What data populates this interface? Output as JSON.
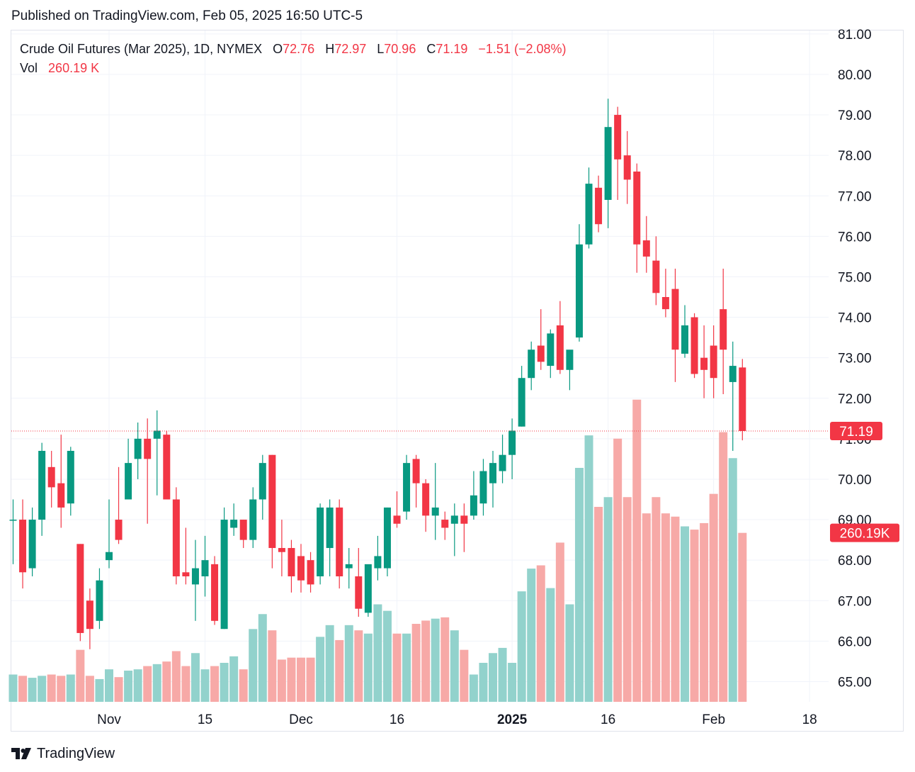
{
  "header": {
    "published": "Published on TradingView.com, Feb 05, 2025 16:50 UTC-5"
  },
  "legend": {
    "symbol": "Crude Oil Futures (Mar 2025), 1D, NYMEX",
    "o_label": "O",
    "o_value": "72.76",
    "h_label": "H",
    "h_value": "72.97",
    "l_label": "L",
    "l_value": "70.96",
    "c_label": "C",
    "c_value": "71.19",
    "change": "−1.51 (−2.08%)",
    "vol_label": "Vol",
    "vol_value": "260.19 K"
  },
  "footer": {
    "brand": "TradingView"
  },
  "chart_data": {
    "type": "candlestick",
    "colors": {
      "up": "#089981",
      "down": "#f23645",
      "up_volume": "#92d2cc",
      "down_volume": "#f7a9a7",
      "grid": "#f0f3fa"
    },
    "y_axis": {
      "ticks": [
        "65.00",
        "66.00",
        "67.00",
        "68.00",
        "69.00",
        "70.00",
        "71.00",
        "72.00",
        "73.00",
        "74.00",
        "75.00",
        "76.00",
        "77.00",
        "78.00",
        "79.00",
        "80.00",
        "81.00"
      ],
      "range": [
        64.45,
        81.05
      ]
    },
    "x_axis": {
      "ticks": [
        "Nov",
        "15",
        "Dec",
        "16",
        "2025",
        "16",
        "Feb",
        "18"
      ],
      "tick_index": [
        10,
        20,
        30,
        40,
        52,
        62,
        73,
        83
      ]
    },
    "last_price": "71.19",
    "last_volume": "260.19K",
    "volume_max": 300,
    "candles": [
      {
        "o": 69.0,
        "h": 69.5,
        "l": 67.9,
        "c": 69.0,
        "v": 42
      },
      {
        "o": 69.0,
        "h": 69.5,
        "l": 67.3,
        "c": 67.7,
        "v": 40
      },
      {
        "o": 67.8,
        "h": 69.3,
        "l": 67.6,
        "c": 69.0,
        "v": 37
      },
      {
        "o": 69.0,
        "h": 70.9,
        "l": 68.6,
        "c": 70.7,
        "v": 40
      },
      {
        "o": 70.3,
        "h": 70.7,
        "l": 69.3,
        "c": 69.8,
        "v": 42
      },
      {
        "o": 69.9,
        "h": 71.1,
        "l": 68.8,
        "c": 69.3,
        "v": 40
      },
      {
        "o": 69.4,
        "h": 70.8,
        "l": 69.1,
        "c": 70.7,
        "v": 42
      },
      {
        "o": 68.4,
        "h": 68.4,
        "l": 66.0,
        "c": 66.2,
        "v": 80
      },
      {
        "o": 67.0,
        "h": 67.3,
        "l": 65.8,
        "c": 66.3,
        "v": 40
      },
      {
        "o": 66.5,
        "h": 67.8,
        "l": 66.3,
        "c": 67.5,
        "v": 35
      },
      {
        "o": 68.0,
        "h": 69.5,
        "l": 67.8,
        "c": 68.2,
        "v": 50
      },
      {
        "o": 69.0,
        "h": 70.3,
        "l": 68.4,
        "c": 68.5,
        "v": 38
      },
      {
        "o": 69.5,
        "h": 71.0,
        "l": 69.5,
        "c": 70.4,
        "v": 48
      },
      {
        "o": 70.5,
        "h": 71.4,
        "l": 70.0,
        "c": 71.0,
        "v": 50
      },
      {
        "o": 71.0,
        "h": 71.5,
        "l": 68.9,
        "c": 70.5,
        "v": 55
      },
      {
        "o": 71.0,
        "h": 71.7,
        "l": 69.6,
        "c": 71.2,
        "v": 58
      },
      {
        "o": 71.1,
        "h": 71.2,
        "l": 69.6,
        "c": 69.5,
        "v": 62
      },
      {
        "o": 69.5,
        "h": 69.8,
        "l": 67.4,
        "c": 67.6,
        "v": 78
      },
      {
        "o": 67.7,
        "h": 68.8,
        "l": 67.4,
        "c": 67.6,
        "v": 55
      },
      {
        "o": 67.4,
        "h": 68.5,
        "l": 66.5,
        "c": 67.8,
        "v": 75
      },
      {
        "o": 67.6,
        "h": 68.6,
        "l": 67.1,
        "c": 68.0,
        "v": 50
      },
      {
        "o": 67.9,
        "h": 68.1,
        "l": 66.4,
        "c": 66.5,
        "v": 55
      },
      {
        "o": 66.3,
        "h": 69.3,
        "l": 66.3,
        "c": 69.0,
        "v": 60
      },
      {
        "o": 68.8,
        "h": 69.4,
        "l": 68.6,
        "c": 69.0,
        "v": 70
      },
      {
        "o": 69.0,
        "h": 69.0,
        "l": 68.3,
        "c": 68.5,
        "v": 50
      },
      {
        "o": 68.5,
        "h": 69.8,
        "l": 68.3,
        "c": 69.5,
        "v": 112
      },
      {
        "o": 69.5,
        "h": 70.6,
        "l": 69.0,
        "c": 70.4,
        "v": 135
      },
      {
        "o": 70.6,
        "h": 70.6,
        "l": 67.8,
        "c": 68.3,
        "v": 110
      },
      {
        "o": 68.3,
        "h": 69.0,
        "l": 67.6,
        "c": 68.2,
        "v": 65
      },
      {
        "o": 68.3,
        "h": 68.5,
        "l": 67.2,
        "c": 67.6,
        "v": 68
      },
      {
        "o": 68.1,
        "h": 68.4,
        "l": 67.2,
        "c": 67.5,
        "v": 68
      },
      {
        "o": 68.0,
        "h": 68.2,
        "l": 67.2,
        "c": 67.4,
        "v": 68
      },
      {
        "o": 67.6,
        "h": 69.4,
        "l": 67.4,
        "c": 69.3,
        "v": 100
      },
      {
        "o": 68.3,
        "h": 69.5,
        "l": 67.6,
        "c": 69.3,
        "v": 118
      },
      {
        "o": 69.3,
        "h": 69.5,
        "l": 67.3,
        "c": 67.6,
        "v": 95
      },
      {
        "o": 67.8,
        "h": 68.3,
        "l": 67.3,
        "c": 67.9,
        "v": 118
      },
      {
        "o": 67.6,
        "h": 68.3,
        "l": 66.6,
        "c": 66.8,
        "v": 110
      },
      {
        "o": 66.7,
        "h": 67.8,
        "l": 66.6,
        "c": 67.9,
        "v": 105
      },
      {
        "o": 67.8,
        "h": 68.6,
        "l": 67.5,
        "c": 68.1,
        "v": 150
      },
      {
        "o": 67.8,
        "h": 69.3,
        "l": 67.6,
        "c": 69.3,
        "v": 140
      },
      {
        "o": 69.1,
        "h": 69.7,
        "l": 68.8,
        "c": 68.9,
        "v": 105
      },
      {
        "o": 69.2,
        "h": 70.6,
        "l": 69.0,
        "c": 70.4,
        "v": 105
      },
      {
        "o": 70.5,
        "h": 70.6,
        "l": 69.3,
        "c": 69.9,
        "v": 120
      },
      {
        "o": 69.9,
        "h": 70.0,
        "l": 68.7,
        "c": 69.1,
        "v": 125
      },
      {
        "o": 69.1,
        "h": 70.4,
        "l": 68.5,
        "c": 69.3,
        "v": 128
      },
      {
        "o": 69.0,
        "h": 69.2,
        "l": 68.5,
        "c": 68.8,
        "v": 130
      },
      {
        "o": 68.9,
        "h": 69.4,
        "l": 68.1,
        "c": 69.1,
        "v": 110
      },
      {
        "o": 69.1,
        "h": 69.4,
        "l": 68.2,
        "c": 68.9,
        "v": 80
      },
      {
        "o": 69.1,
        "h": 70.2,
        "l": 69.0,
        "c": 69.6,
        "v": 42
      },
      {
        "o": 69.4,
        "h": 70.5,
        "l": 69.1,
        "c": 70.2,
        "v": 60
      },
      {
        "o": 69.9,
        "h": 70.7,
        "l": 69.3,
        "c": 70.4,
        "v": 75
      },
      {
        "o": 70.2,
        "h": 71.1,
        "l": 69.9,
        "c": 70.6,
        "v": 83
      },
      {
        "o": 70.6,
        "h": 71.5,
        "l": 70.0,
        "c": 71.2,
        "v": 60
      },
      {
        "o": 71.3,
        "h": 72.8,
        "l": 71.3,
        "c": 72.5,
        "v": 170
      },
      {
        "o": 72.5,
        "h": 73.4,
        "l": 72.2,
        "c": 73.2,
        "v": 205
      },
      {
        "o": 73.3,
        "h": 74.2,
        "l": 72.7,
        "c": 72.9,
        "v": 210
      },
      {
        "o": 72.8,
        "h": 73.7,
        "l": 72.5,
        "c": 73.6,
        "v": 175
      },
      {
        "o": 73.8,
        "h": 74.4,
        "l": 72.6,
        "c": 72.7,
        "v": 245
      },
      {
        "o": 72.7,
        "h": 73.1,
        "l": 72.2,
        "c": 73.2,
        "v": 150
      },
      {
        "o": 73.5,
        "h": 76.3,
        "l": 73.4,
        "c": 75.8,
        "v": 360
      },
      {
        "o": 75.8,
        "h": 77.7,
        "l": 75.7,
        "c": 77.3,
        "v": 410
      },
      {
        "o": 77.2,
        "h": 77.5,
        "l": 76.1,
        "c": 76.3,
        "v": 300
      },
      {
        "o": 76.9,
        "h": 79.4,
        "l": 76.2,
        "c": 78.7,
        "v": 315
      },
      {
        "o": 79.0,
        "h": 79.2,
        "l": 76.9,
        "c": 77.9,
        "v": 405
      },
      {
        "o": 78.0,
        "h": 78.6,
        "l": 76.8,
        "c": 77.4,
        "v": 315
      },
      {
        "o": 77.6,
        "h": 77.8,
        "l": 75.1,
        "c": 75.8,
        "v": 465
      },
      {
        "o": 75.9,
        "h": 76.5,
        "l": 75.1,
        "c": 75.5,
        "v": 290
      },
      {
        "o": 75.4,
        "h": 76.0,
        "l": 74.3,
        "c": 74.6,
        "v": 315
      },
      {
        "o": 74.5,
        "h": 75.2,
        "l": 74.0,
        "c": 74.2,
        "v": 290
      },
      {
        "o": 74.7,
        "h": 75.2,
        "l": 72.4,
        "c": 73.2,
        "v": 285
      },
      {
        "o": 73.1,
        "h": 74.3,
        "l": 73.0,
        "c": 73.8,
        "v": 270
      },
      {
        "o": 74.0,
        "h": 74.1,
        "l": 72.5,
        "c": 72.6,
        "v": 265
      },
      {
        "o": 73.0,
        "h": 73.8,
        "l": 72.0,
        "c": 72.7,
        "v": 275
      },
      {
        "o": 73.3,
        "h": 73.8,
        "l": 72.0,
        "c": 72.5,
        "v": 320
      },
      {
        "o": 74.2,
        "h": 75.2,
        "l": 72.1,
        "c": 73.2,
        "v": 415
      },
      {
        "o": 72.4,
        "h": 73.4,
        "l": 70.7,
        "c": 72.8,
        "v": 375
      },
      {
        "o": 72.76,
        "h": 72.97,
        "l": 70.96,
        "c": 71.19,
        "v": 260
      }
    ]
  }
}
